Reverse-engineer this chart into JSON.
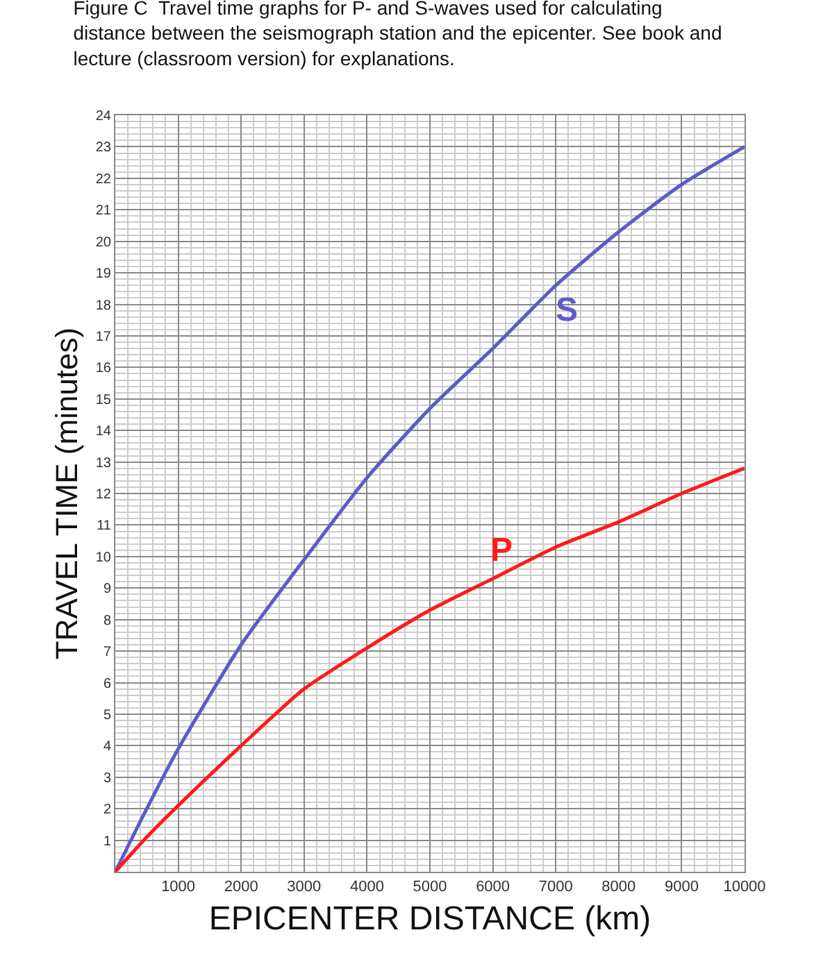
{
  "chart_data": {
    "type": "line",
    "title": "Figure C  Travel time graphs for P- and S-waves used for calculating distance between the seismograph station and the epicenter. See book and lecture (classroom version) for explanations.",
    "xlabel": "EPICENTER DISTANCE (km)",
    "ylabel": "TRAVEL TIME (minutes)",
    "x": [
      0,
      500,
      1000,
      2000,
      3000,
      4000,
      5000,
      6000,
      7000,
      8000,
      9000,
      10000
    ],
    "series": [
      {
        "name": "S",
        "color": "#5b5bc8",
        "values": [
          0,
          2.0,
          3.9,
          7.2,
          9.9,
          12.5,
          14.7,
          16.6,
          18.6,
          20.3,
          21.8,
          23.0
        ]
      },
      {
        "name": "P",
        "color": "#ff1a1a",
        "values": [
          0,
          1.1,
          2.1,
          4.0,
          5.8,
          7.1,
          8.3,
          9.3,
          10.3,
          11.1,
          12.0,
          12.8
        ]
      }
    ],
    "xlim": [
      0,
      10000
    ],
    "ylim": [
      0,
      24
    ],
    "xticks": [
      1000,
      2000,
      3000,
      4000,
      5000,
      6000,
      7000,
      8000,
      9000,
      10000
    ],
    "yticks": [
      1,
      2,
      3,
      4,
      5,
      6,
      7,
      8,
      9,
      10,
      11,
      12,
      13,
      14,
      15,
      16,
      17,
      18,
      19,
      20,
      21,
      22,
      23,
      24
    ],
    "grid": true,
    "legend": false,
    "marker": "none",
    "line_style": "solid"
  }
}
